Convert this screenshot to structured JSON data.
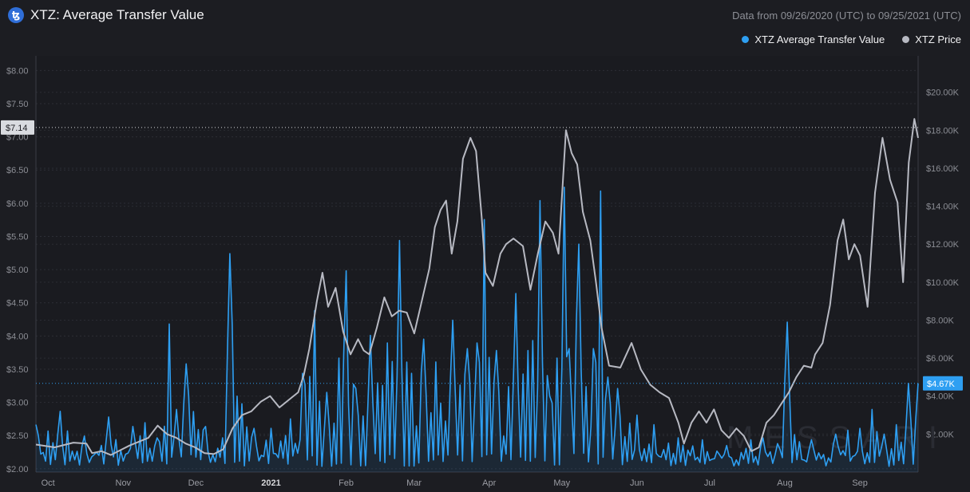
{
  "header": {
    "logo_glyph": "ꜩ",
    "title": "XTZ: Average Transfer Value",
    "date_range": "Data from 09/26/2020 (UTC) to 09/25/2021 (UTC)"
  },
  "legend": [
    {
      "label": "XTZ Average Transfer Value",
      "color": "#2e9ff2"
    },
    {
      "label": "XTZ Price",
      "color": "#b7b9c2"
    }
  ],
  "watermark": "MESSARI",
  "chart_data": {
    "type": "line",
    "left_axis": {
      "ticks": [
        "$8.00",
        "$7.50",
        "$7.00",
        "$6.50",
        "$6.00",
        "$5.50",
        "$5.00",
        "$4.50",
        "$4.00",
        "$3.50",
        "$3.00",
        "$2.50",
        "$2.00"
      ],
      "ylim": [
        1.95,
        8.1
      ],
      "current_label": "$7.14",
      "current_value": 7.14
    },
    "right_axis": {
      "ticks": [
        "$20.00K",
        "$18.00K",
        "$16.00K",
        "$14.00K",
        "$12.00K",
        "$10.00K",
        "$8.00K",
        "$6.00K",
        "$4.00K",
        "$2.00K"
      ],
      "ylim": [
        0,
        21500
      ],
      "current_label": "$4.67K",
      "current_value": 4670
    },
    "x_ticks": [
      {
        "label": "Oct",
        "day": 5,
        "bold": false
      },
      {
        "label": "Nov",
        "day": 36,
        "bold": false
      },
      {
        "label": "Dec",
        "day": 66,
        "bold": false
      },
      {
        "label": "2021",
        "day": 97,
        "bold": true
      },
      {
        "label": "Feb",
        "day": 128,
        "bold": false
      },
      {
        "label": "Mar",
        "day": 156,
        "bold": false
      },
      {
        "label": "Apr",
        "day": 187,
        "bold": false
      },
      {
        "label": "May",
        "day": 217,
        "bold": false
      },
      {
        "label": "Jun",
        "day": 248,
        "bold": false
      },
      {
        "label": "Jul",
        "day": 278,
        "bold": false
      },
      {
        "label": "Aug",
        "day": 309,
        "bold": false
      },
      {
        "label": "Sep",
        "day": 340,
        "bold": false
      }
    ],
    "series": [
      {
        "name": "XTZ Average Transfer Value",
        "axis": "right",
        "color": "#2e9ff2",
        "keypoints": [
          [
            0,
            2500
          ],
          [
            10,
            3200
          ],
          [
            20,
            1900
          ],
          [
            30,
            2900
          ],
          [
            40,
            2400
          ],
          [
            45,
            2600
          ],
          [
            50,
            1800
          ],
          [
            55,
            7800
          ],
          [
            58,
            3300
          ],
          [
            62,
            5700
          ],
          [
            70,
            2400
          ],
          [
            77,
            1800
          ],
          [
            80,
            11500
          ],
          [
            85,
            3600
          ],
          [
            90,
            2300
          ],
          [
            97,
            2300
          ],
          [
            105,
            2800
          ],
          [
            110,
            5200
          ],
          [
            115,
            8500
          ],
          [
            120,
            4200
          ],
          [
            125,
            6000
          ],
          [
            128,
            10600
          ],
          [
            132,
            4400
          ],
          [
            138,
            7200
          ],
          [
            145,
            6800
          ],
          [
            150,
            12200
          ],
          [
            155,
            5200
          ],
          [
            160,
            7000
          ],
          [
            165,
            5800
          ],
          [
            172,
            8000
          ],
          [
            178,
            6500
          ],
          [
            182,
            6800
          ],
          [
            185,
            13300
          ],
          [
            190,
            6400
          ],
          [
            195,
            4500
          ],
          [
            198,
            9400
          ],
          [
            203,
            6400
          ],
          [
            208,
            14300
          ],
          [
            212,
            4000
          ],
          [
            218,
            15000
          ],
          [
            220,
            6500
          ],
          [
            224,
            12000
          ],
          [
            227,
            4500
          ],
          [
            230,
            6500
          ],
          [
            233,
            14800
          ],
          [
            236,
            5000
          ],
          [
            240,
            4400
          ],
          [
            248,
            3000
          ],
          [
            255,
            2500
          ],
          [
            265,
            1800
          ],
          [
            275,
            1700
          ],
          [
            285,
            1400
          ],
          [
            295,
            1700
          ],
          [
            300,
            1800
          ],
          [
            306,
            1500
          ],
          [
            310,
            7900
          ],
          [
            315,
            1600
          ],
          [
            320,
            1700
          ],
          [
            330,
            2000
          ],
          [
            335,
            2200
          ],
          [
            340,
            2300
          ],
          [
            345,
            3300
          ],
          [
            350,
            2000
          ],
          [
            355,
            2500
          ],
          [
            360,
            4670
          ],
          [
            364,
            4670
          ]
        ]
      },
      {
        "name": "XTZ Price",
        "axis": "right",
        "color": "#b7b9c2",
        "points": [
          [
            0,
            1450
          ],
          [
            10,
            1300
          ],
          [
            20,
            1550
          ],
          [
            27,
            1500
          ],
          [
            30,
            1000
          ],
          [
            35,
            1100
          ],
          [
            40,
            900
          ],
          [
            45,
            1150
          ],
          [
            50,
            1400
          ],
          [
            55,
            1600
          ],
          [
            60,
            1800
          ],
          [
            65,
            2450
          ],
          [
            70,
            2000
          ],
          [
            75,
            1800
          ],
          [
            80,
            1500
          ],
          [
            85,
            1300
          ],
          [
            90,
            1000
          ],
          [
            95,
            950
          ],
          [
            100,
            1200
          ],
          [
            105,
            2300
          ],
          [
            110,
            3000
          ],
          [
            115,
            3200
          ],
          [
            120,
            3700
          ],
          [
            125,
            4000
          ],
          [
            130,
            3400
          ],
          [
            135,
            3800
          ],
          [
            140,
            4200
          ],
          [
            143,
            5100
          ],
          [
            146,
            6500
          ],
          [
            150,
            9000
          ],
          [
            153,
            10500
          ],
          [
            156,
            8700
          ],
          [
            160,
            9700
          ],
          [
            164,
            7400
          ],
          [
            168,
            6200
          ],
          [
            172,
            7000
          ],
          [
            175,
            6400
          ],
          [
            178,
            6200
          ],
          [
            182,
            7600
          ],
          [
            186,
            9200
          ],
          [
            190,
            8200
          ],
          [
            194,
            8500
          ],
          [
            198,
            8400
          ],
          [
            202,
            7300
          ],
          [
            206,
            9000
          ],
          [
            210,
            10700
          ],
          [
            213,
            12900
          ],
          [
            216,
            13800
          ],
          [
            219,
            14300
          ],
          [
            222,
            11500
          ],
          [
            225,
            13200
          ],
          [
            228,
            16500
          ],
          [
            232,
            17600
          ],
          [
            235,
            16900
          ],
          [
            238,
            13400
          ],
          [
            240,
            10500
          ],
          [
            244,
            9800
          ],
          [
            248,
            11500
          ],
          [
            251,
            12000
          ],
          [
            255,
            12300
          ],
          [
            260,
            11900
          ],
          [
            264,
            9600
          ],
          [
            268,
            11500
          ],
          [
            272,
            13200
          ],
          [
            276,
            12600
          ],
          [
            279,
            11500
          ],
          [
            283,
            18000
          ],
          [
            286,
            16800
          ],
          [
            289,
            16200
          ],
          [
            292,
            13700
          ],
          [
            296,
            12200
          ],
          [
            299,
            10000
          ],
          [
            302,
            7600
          ],
          [
            306,
            5600
          ],
          [
            312,
            5500
          ],
          [
            318,
            6800
          ],
          [
            323,
            5400
          ],
          [
            328,
            4600
          ],
          [
            333,
            4200
          ],
          [
            338,
            3900
          ],
          [
            343,
            2600
          ],
          [
            346,
            1500
          ],
          [
            350,
            2600
          ],
          [
            354,
            3200
          ],
          [
            358,
            2600
          ],
          [
            362,
            3300
          ],
          [
            366,
            2200
          ],
          [
            370,
            1800
          ],
          [
            374,
            2300
          ],
          [
            378,
            1900
          ],
          [
            382,
            1100
          ],
          [
            386,
            1300
          ],
          [
            390,
            2600
          ],
          [
            394,
            3000
          ],
          [
            398,
            3600
          ],
          [
            402,
            4200
          ],
          [
            406,
            5000
          ],
          [
            410,
            5600
          ],
          [
            414,
            5500
          ],
          [
            416,
            6200
          ],
          [
            420,
            6800
          ],
          [
            424,
            8800
          ],
          [
            428,
            12200
          ],
          [
            431,
            13300
          ],
          [
            434,
            11200
          ],
          [
            437,
            12000
          ],
          [
            440,
            11400
          ],
          [
            444,
            8700
          ],
          [
            448,
            14700
          ],
          [
            452,
            17600
          ],
          [
            456,
            15400
          ],
          [
            460,
            14200
          ],
          [
            463,
            10000
          ],
          [
            466,
            16300
          ],
          [
            469,
            18600
          ],
          [
            471,
            17600
          ]
        ]
      }
    ]
  }
}
